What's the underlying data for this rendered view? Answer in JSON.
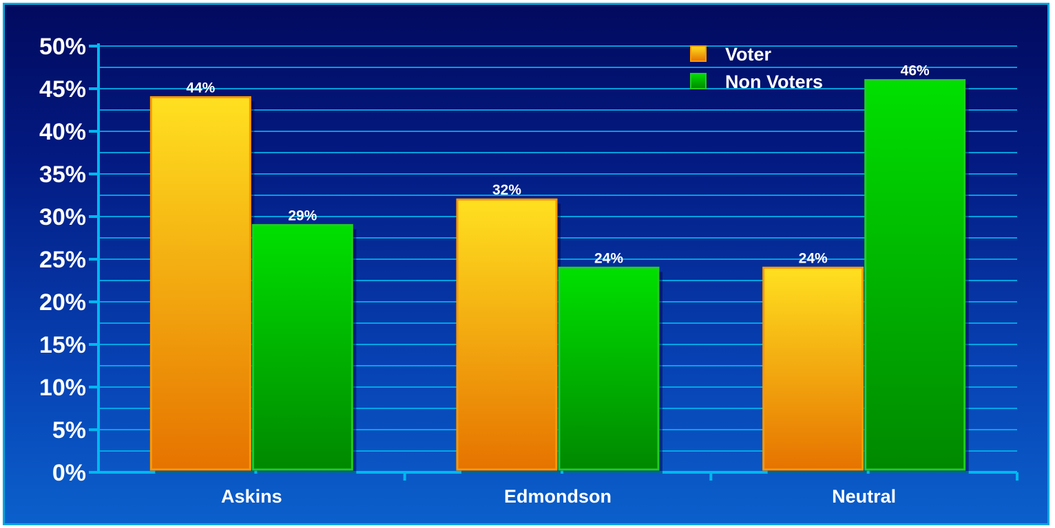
{
  "chart_data": {
    "type": "bar",
    "categories": [
      "Askins",
      "Edmondson",
      "Neutral"
    ],
    "series": [
      {
        "name": "Voter",
        "values": [
          44,
          32,
          24
        ],
        "labels": [
          "44%",
          "32%",
          "24%"
        ]
      },
      {
        "name": "Non Voters",
        "values": [
          29,
          24,
          46
        ],
        "labels": [
          "29%",
          "24%",
          "46%"
        ]
      }
    ],
    "ylim": [
      0,
      50
    ],
    "y_ticks": [
      0,
      5,
      10,
      15,
      20,
      25,
      30,
      35,
      40,
      45,
      50
    ],
    "y_tick_labels": [
      "0%",
      "5%",
      "10%",
      "15%",
      "20%",
      "25%",
      "30%",
      "35%",
      "40%",
      "45%",
      "50%"
    ],
    "grid": true,
    "legend_position": "top-right",
    "colors": {
      "Voter_top": "#ffe020",
      "Voter_bottom": "#e67300",
      "Voter_border": "#ff9a00",
      "Non Voters_top": "#00e000",
      "Non Voters_bottom": "#008800",
      "Non Voters_border": "#22cc22",
      "axis": "#00b8f0",
      "grid": "#00b8f0"
    }
  }
}
